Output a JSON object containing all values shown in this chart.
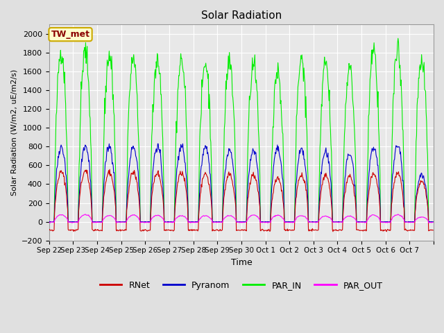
{
  "title": "Solar Radiation",
  "ylabel": "Solar Radiation (W/m2, uE/m2/s)",
  "xlabel": "Time",
  "ylim": [
    -200,
    2100
  ],
  "yticks": [
    -200,
    0,
    200,
    400,
    600,
    800,
    1000,
    1200,
    1400,
    1600,
    1800,
    2000
  ],
  "background_color": "#e0e0e0",
  "plot_bg_color": "#e8e8e8",
  "grid_color": "white",
  "colors": {
    "RNet": "#cc0000",
    "Pyranom": "#0000cc",
    "PAR_IN": "#00ee00",
    "PAR_OUT": "#ff00ff"
  },
  "annotation_text": "TW_met",
  "annotation_bg": "#ffffcc",
  "annotation_border": "#ccaa00",
  "annotation_text_color": "#8b0000",
  "x_tick_labels": [
    "Sep 22",
    "Sep 23",
    "Sep 24",
    "Sep 25",
    "Sep 26",
    "Sep 27",
    "Sep 28",
    "Sep 29",
    "Sep 30",
    "Oct 1",
    "Oct 2",
    "Oct 3",
    "Oct 4",
    "Oct 5",
    "Oct 6",
    "Oct 7"
  ],
  "num_days": 16,
  "PAR_IN_peaks": [
    1820,
    1810,
    1770,
    1755,
    1745,
    1720,
    1695,
    1680,
    1660,
    1600,
    1730,
    1695,
    1625,
    1800,
    1820,
    1710
  ],
  "Pyranom_peaks": [
    800,
    805,
    800,
    790,
    800,
    800,
    795,
    760,
    755,
    770,
    760,
    740,
    720,
    785,
    815,
    500
  ],
  "RNet_peaks": [
    530,
    535,
    525,
    525,
    520,
    520,
    510,
    500,
    500,
    460,
    500,
    495,
    490,
    510,
    520,
    430
  ],
  "PAR_OUT_peaks": [
    75,
    75,
    65,
    70,
    70,
    65,
    65,
    65,
    70,
    70,
    65,
    60,
    60,
    70,
    75,
    50
  ],
  "RNet_night": -90,
  "figsize": [
    6.4,
    4.8
  ],
  "dpi": 100
}
